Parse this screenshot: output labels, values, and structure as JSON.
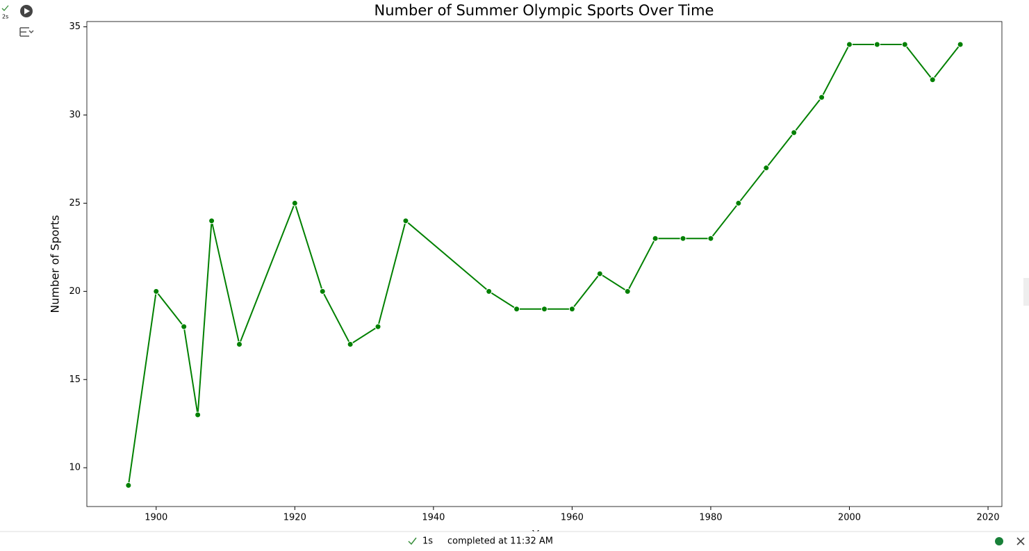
{
  "chart_data": {
    "type": "line",
    "title": "Number of Summer Olympic Sports Over Time",
    "x_label": "Year",
    "y_label": "Number of Sports",
    "x": [
      1896,
      1900,
      1904,
      1906,
      1908,
      1912,
      1920,
      1924,
      1928,
      1932,
      1936,
      1948,
      1952,
      1956,
      1960,
      1964,
      1968,
      1972,
      1976,
      1980,
      1984,
      1988,
      1992,
      1996,
      2000,
      2004,
      2008,
      2012,
      2016
    ],
    "series": [
      {
        "color": "#008000",
        "values": [
          9,
          20,
          18,
          13,
          24,
          17,
          25,
          20,
          17,
          18,
          24,
          20,
          19,
          19,
          19,
          21,
          20,
          23,
          23,
          23,
          25,
          27,
          29,
          31,
          34,
          34,
          34,
          32,
          34
        ]
      }
    ],
    "xlim": [
      1890,
      2022
    ],
    "xticks": [
      1900,
      1920,
      1940,
      1960,
      1980,
      2000,
      2020
    ],
    "ylim": [
      7.8,
      35.3
    ],
    "yticks": [
      10,
      15,
      20,
      25,
      30,
      35
    ]
  },
  "ui": {
    "cell_time": "2s",
    "status_time": "1s",
    "status_text": "completed at 11:32 AM"
  }
}
